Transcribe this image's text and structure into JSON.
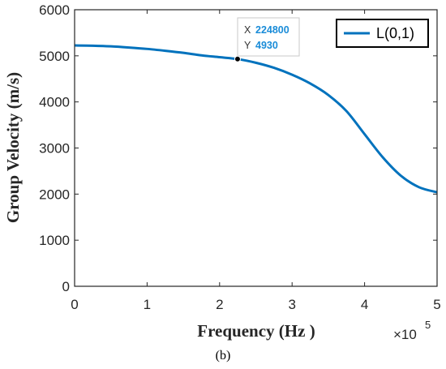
{
  "chart_data": {
    "type": "line",
    "xlabel": "Frequency (Hz )",
    "ylabel": "Group Velocity (m/s)",
    "x_exponent_label": "×10",
    "x_exponent_power": "5",
    "xlim": [
      0,
      500000
    ],
    "ylim": [
      0,
      6000
    ],
    "x_ticks": [
      0,
      100000,
      200000,
      300000,
      400000,
      500000
    ],
    "x_tick_labels": [
      "0",
      "1",
      "2",
      "3",
      "4",
      "5"
    ],
    "y_ticks": [
      0,
      1000,
      2000,
      3000,
      4000,
      5000,
      6000
    ],
    "y_tick_labels": [
      "0",
      "1000",
      "2000",
      "3000",
      "4000",
      "5000",
      "6000"
    ],
    "grid": false,
    "legend_position": "top-right",
    "series": [
      {
        "name": "L(0,1)",
        "color": "#0072bd",
        "x": [
          0,
          25000,
          50000,
          75000,
          100000,
          125000,
          150000,
          175000,
          200000,
          224800,
          250000,
          275000,
          300000,
          325000,
          350000,
          375000,
          400000,
          425000,
          450000,
          475000,
          500000
        ],
        "y": [
          5225,
          5220,
          5205,
          5180,
          5150,
          5110,
          5065,
          5010,
          4970,
          4930,
          4850,
          4740,
          4590,
          4400,
          4150,
          3800,
          3300,
          2800,
          2400,
          2150,
          2040
        ]
      }
    ],
    "datatip": {
      "x_key": "X",
      "x_value": "224800",
      "y_key": "Y",
      "y_value": "4930",
      "x": 224800,
      "y": 4930
    },
    "caption": "(b)"
  }
}
